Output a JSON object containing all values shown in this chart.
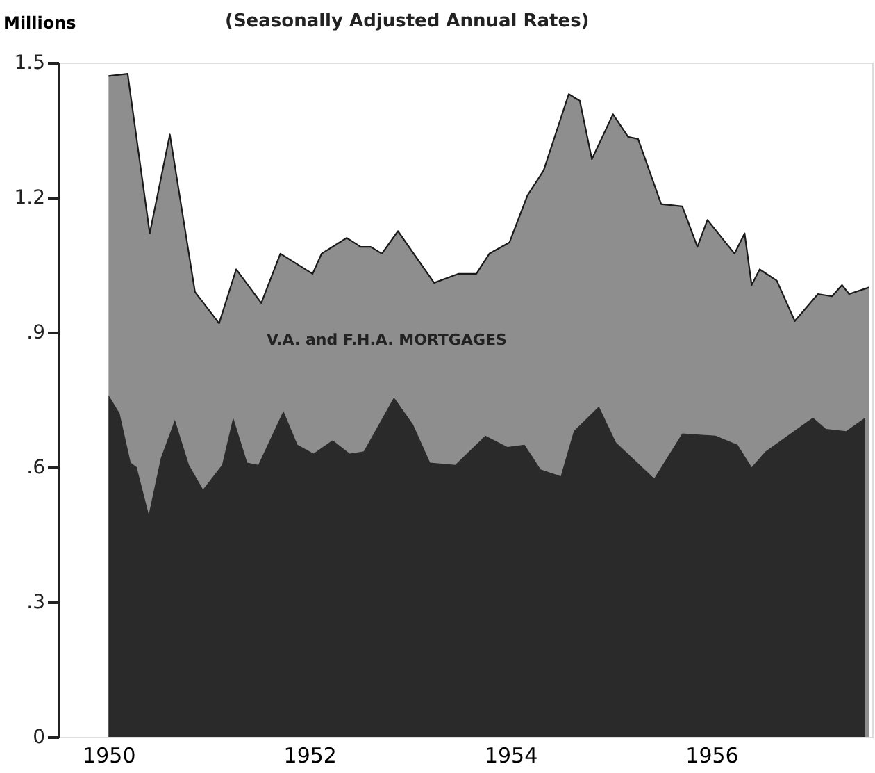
{
  "chart_data": {
    "type": "area",
    "title": "(Seasonally Adjusted Annual Rates)",
    "ylabel": "Millions",
    "xlim": [
      1949.5,
      1957.6
    ],
    "xticks": [
      1950,
      1952,
      1954,
      1956
    ],
    "ylim": [
      0,
      1.5
    ],
    "yticks": [
      {
        "value": 0,
        "label": "0"
      },
      {
        "value": 0.3,
        "label": ".3"
      },
      {
        "value": 0.6,
        "label": ".6"
      },
      {
        "value": 0.9,
        "label": ".9"
      },
      {
        "value": 1.2,
        "label": "1.2"
      },
      {
        "value": 1.5,
        "label": "1.5"
      }
    ],
    "grid": false,
    "legend": false,
    "series": [
      {
        "name": "V.A. and F.H.A. MORTGAGES",
        "color": "#8e8e8e",
        "x": [
          1950.0,
          1950.19,
          1950.41,
          1950.61,
          1950.86,
          1951.1,
          1951.27,
          1951.52,
          1951.71,
          1952.03,
          1952.12,
          1952.37,
          1952.51,
          1952.61,
          1952.72,
          1952.88,
          1953.24,
          1953.48,
          1953.66,
          1953.79,
          1953.99,
          1954.17,
          1954.33,
          1954.58,
          1954.69,
          1954.81,
          1955.02,
          1955.17,
          1955.27,
          1955.5,
          1955.71,
          1955.86,
          1955.96,
          1956.23,
          1956.33,
          1956.4,
          1956.48,
          1956.65,
          1956.83,
          1957.06,
          1957.2,
          1957.3,
          1957.37,
          1957.57
        ],
        "values": [
          1.47,
          1.475,
          1.12,
          1.34,
          0.99,
          0.92,
          1.04,
          0.965,
          1.075,
          1.03,
          1.075,
          1.11,
          1.09,
          1.09,
          1.075,
          1.125,
          1.01,
          1.03,
          1.03,
          1.075,
          1.1,
          1.205,
          1.26,
          1.43,
          1.415,
          1.285,
          1.385,
          1.335,
          1.33,
          1.185,
          1.18,
          1.09,
          1.15,
          1.075,
          1.12,
          1.005,
          1.04,
          1.015,
          0.925,
          0.985,
          0.98,
          1.005,
          0.985,
          1.0
        ]
      },
      {
        "color": "#2a2a2a",
        "x": [
          1950.0,
          1950.11,
          1950.22,
          1950.28,
          1950.4,
          1950.52,
          1950.66,
          1950.8,
          1950.94,
          1951.13,
          1951.24,
          1951.38,
          1951.49,
          1951.74,
          1951.88,
          1952.04,
          1952.23,
          1952.4,
          1952.54,
          1952.84,
          1953.03,
          1953.2,
          1953.45,
          1953.75,
          1953.97,
          1954.14,
          1954.3,
          1954.5,
          1954.63,
          1954.88,
          1955.05,
          1955.43,
          1955.71,
          1956.04,
          1956.26,
          1956.4,
          1956.54,
          1957.01,
          1957.14,
          1957.34,
          1957.53
        ],
        "values": [
          0.76,
          0.72,
          0.61,
          0.6,
          0.495,
          0.62,
          0.705,
          0.605,
          0.55,
          0.605,
          0.71,
          0.61,
          0.605,
          0.725,
          0.65,
          0.63,
          0.66,
          0.63,
          0.635,
          0.755,
          0.695,
          0.61,
          0.605,
          0.67,
          0.645,
          0.65,
          0.595,
          0.58,
          0.68,
          0.735,
          0.655,
          0.575,
          0.675,
          0.67,
          0.65,
          0.6,
          0.635,
          0.71,
          0.685,
          0.68,
          0.71
        ]
      }
    ]
  }
}
